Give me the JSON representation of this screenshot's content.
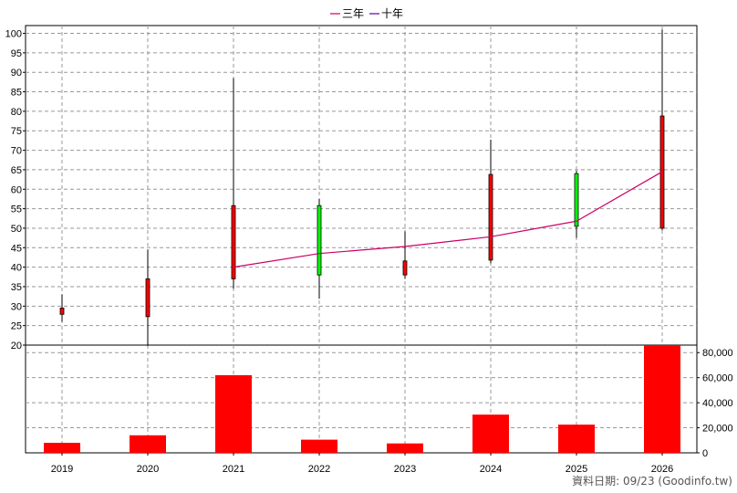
{
  "legend": [
    {
      "label": "三年",
      "color": "#cc0066"
    },
    {
      "label": "十年",
      "color": "#660099"
    }
  ],
  "footer": {
    "text": "資料日期: 09/23  (Goodinfo.tw)"
  },
  "colors": {
    "up": "#ff0000",
    "down": "#00ff00",
    "volume": "#ff0000",
    "line": "#cc0066",
    "grid": "#999999"
  },
  "chart_data": [
    {
      "type": "candlestick",
      "categories": [
        "2019",
        "2020",
        "2021",
        "2022",
        "2023",
        "2024",
        "2025",
        "2026"
      ],
      "ylim": [
        20,
        102
      ],
      "yticks": [
        20,
        25,
        30,
        35,
        40,
        45,
        50,
        55,
        60,
        65,
        70,
        75,
        80,
        85,
        90,
        95,
        100
      ],
      "grid": true,
      "candles": [
        {
          "year": "2019",
          "open": 27.9,
          "high": 33.0,
          "low": 26.0,
          "close": 29.5
        },
        {
          "year": "2020",
          "open": 27.3,
          "high": 44.5,
          "low": 19.8,
          "close": 37.0
        },
        {
          "year": "2021",
          "open": 37.0,
          "high": 88.5,
          "low": 34.5,
          "close": 55.8
        },
        {
          "year": "2022",
          "open": 55.8,
          "high": 57.5,
          "low": 31.9,
          "close": 38.0
        },
        {
          "year": "2023",
          "open": 38.0,
          "high": 49.2,
          "low": 37.0,
          "close": 41.6
        },
        {
          "year": "2024",
          "open": 41.8,
          "high": 72.7,
          "low": 41.0,
          "close": 63.8
        },
        {
          "year": "2025",
          "open": 64.0,
          "high": 64.8,
          "low": 47.5,
          "close": 50.5
        },
        {
          "year": "2026",
          "open": 50.0,
          "high": 101.0,
          "low": 49.5,
          "close": 78.8
        }
      ],
      "series": [
        {
          "name": "三年",
          "x": [
            "2021",
            "2022",
            "2023",
            "2024",
            "2025",
            "2026"
          ],
          "values": [
            40.0,
            43.5,
            45.3,
            47.8,
            51.8,
            64.5
          ]
        }
      ]
    },
    {
      "type": "bar",
      "categories": [
        "2019",
        "2020",
        "2021",
        "2022",
        "2023",
        "2024",
        "2025",
        "2026"
      ],
      "values": [
        8000,
        14000,
        62000,
        10500,
        7500,
        30500,
        22500,
        86000
      ],
      "ylim": [
        0,
        86000
      ],
      "yticks": [
        0,
        20000,
        40000,
        60000,
        80000
      ],
      "ytick_labels": [
        "0",
        "20,000",
        "40,000",
        "60,000",
        "80,000"
      ],
      "grid": true
    }
  ]
}
